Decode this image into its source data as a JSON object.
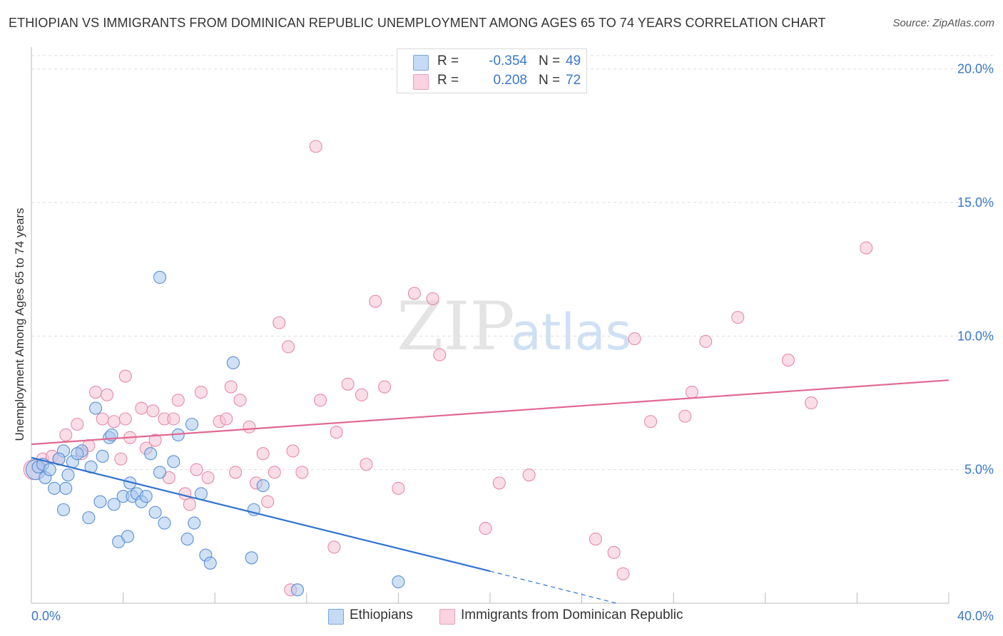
{
  "header": {
    "title": "ETHIOPIAN VS IMMIGRANTS FROM DOMINICAN REPUBLIC UNEMPLOYMENT AMONG AGES 65 TO 74 YEARS CORRELATION CHART",
    "source": "Source: ZipAtlas.com"
  },
  "colors": {
    "blue_fill": "#aac8ee",
    "blue_stroke": "#5b8fd6",
    "blue_line": "#2f72cf",
    "pink_fill": "#f5c2d4",
    "pink_stroke": "#e68aab",
    "pink_line": "#e0698f",
    "grid": "#dddddd",
    "tick_label": "#3a78c9"
  },
  "legend_top": {
    "rows": [
      {
        "r_label": "R =",
        "r_value": "-0.354",
        "n_label": "N =",
        "n_value": "49"
      },
      {
        "r_label": "R =",
        "r_value": "0.208",
        "n_label": "N =",
        "n_value": "72"
      }
    ]
  },
  "legend_bottom": {
    "items": [
      {
        "label": "Ethiopians"
      },
      {
        "label": "Immigrants from Dominican Republic"
      }
    ]
  },
  "watermark": {
    "part1": "ZIP",
    "part2": "atlas"
  },
  "chart_data": {
    "type": "scatter",
    "title": "ETHIOPIAN VS IMMIGRANTS FROM DOMINICAN REPUBLIC UNEMPLOYMENT AMONG AGES 65 TO 74 YEARS CORRELATION CHART",
    "xlabel": "",
    "ylabel": "Unemployment Among Ages 65 to 74 years",
    "xlim": [
      0,
      40
    ],
    "ylim": [
      0,
      20.5
    ],
    "x_tick_labels": [
      "0.0%",
      "40.0%"
    ],
    "y_ticks": [
      5,
      10,
      15,
      20
    ],
    "y_tick_labels": [
      "5.0%",
      "10.0%",
      "15.0%",
      "20.0%"
    ],
    "grid": "horizontal dashed",
    "legend_position": "top-center",
    "series": [
      {
        "name": "Ethiopians",
        "R": -0.354,
        "N": 49,
        "trend": {
          "x": [
            0,
            20
          ],
          "y": [
            5.45,
            1.2
          ],
          "dashed_to": {
            "x": 25.5,
            "y": 0.0
          }
        },
        "points": [
          {
            "x": 0.2,
            "y": 5.0,
            "r": 14
          },
          {
            "x": 0.3,
            "y": 5.1
          },
          {
            "x": 0.5,
            "y": 5.2
          },
          {
            "x": 0.6,
            "y": 4.7
          },
          {
            "x": 1.0,
            "y": 4.3
          },
          {
            "x": 1.4,
            "y": 5.7
          },
          {
            "x": 1.4,
            "y": 3.5
          },
          {
            "x": 1.5,
            "y": 4.3
          },
          {
            "x": 1.6,
            "y": 4.8
          },
          {
            "x": 1.8,
            "y": 5.3
          },
          {
            "x": 2.2,
            "y": 5.7
          },
          {
            "x": 2.5,
            "y": 3.2
          },
          {
            "x": 2.6,
            "y": 5.1
          },
          {
            "x": 2.8,
            "y": 7.3
          },
          {
            "x": 3.0,
            "y": 3.8
          },
          {
            "x": 3.1,
            "y": 5.5
          },
          {
            "x": 3.4,
            "y": 6.2
          },
          {
            "x": 3.5,
            "y": 6.3
          },
          {
            "x": 3.6,
            "y": 3.7
          },
          {
            "x": 3.8,
            "y": 2.3
          },
          {
            "x": 4.0,
            "y": 4.0
          },
          {
            "x": 4.2,
            "y": 2.5
          },
          {
            "x": 4.3,
            "y": 4.5
          },
          {
            "x": 4.4,
            "y": 4.0
          },
          {
            "x": 4.6,
            "y": 4.1
          },
          {
            "x": 4.8,
            "y": 3.8
          },
          {
            "x": 5.0,
            "y": 4.0
          },
          {
            "x": 5.2,
            "y": 5.6
          },
          {
            "x": 5.4,
            "y": 3.4
          },
          {
            "x": 5.6,
            "y": 4.9
          },
          {
            "x": 5.6,
            "y": 12.2
          },
          {
            "x": 5.8,
            "y": 3.0
          },
          {
            "x": 6.2,
            "y": 5.3
          },
          {
            "x": 6.4,
            "y": 6.3
          },
          {
            "x": 6.8,
            "y": 2.4
          },
          {
            "x": 7.0,
            "y": 6.7
          },
          {
            "x": 7.1,
            "y": 3.0
          },
          {
            "x": 7.4,
            "y": 4.1
          },
          {
            "x": 7.6,
            "y": 1.8
          },
          {
            "x": 7.8,
            "y": 1.5
          },
          {
            "x": 8.8,
            "y": 9.0
          },
          {
            "x": 9.6,
            "y": 1.7
          },
          {
            "x": 9.7,
            "y": 3.5
          },
          {
            "x": 10.1,
            "y": 4.4
          },
          {
            "x": 11.6,
            "y": 0.5
          },
          {
            "x": 16.0,
            "y": 0.8
          },
          {
            "x": 2.0,
            "y": 5.6
          },
          {
            "x": 1.2,
            "y": 5.4
          },
          {
            "x": 0.8,
            "y": 5.0
          }
        ]
      },
      {
        "name": "Immigrants from Dominican Republic",
        "R": 0.208,
        "N": 72,
        "trend": {
          "x": [
            0,
            40
          ],
          "y": [
            5.95,
            8.35
          ]
        },
        "points": [
          {
            "x": 0.1,
            "y": 5.0,
            "r": 14
          },
          {
            "x": 0.5,
            "y": 5.4
          },
          {
            "x": 0.9,
            "y": 5.5
          },
          {
            "x": 1.2,
            "y": 5.4
          },
          {
            "x": 1.5,
            "y": 6.3
          },
          {
            "x": 2.0,
            "y": 6.7
          },
          {
            "x": 2.2,
            "y": 5.6
          },
          {
            "x": 2.5,
            "y": 5.9
          },
          {
            "x": 2.8,
            "y": 7.9
          },
          {
            "x": 3.1,
            "y": 6.9
          },
          {
            "x": 3.3,
            "y": 7.8
          },
          {
            "x": 3.6,
            "y": 6.8
          },
          {
            "x": 3.9,
            "y": 5.4
          },
          {
            "x": 4.1,
            "y": 8.5
          },
          {
            "x": 4.3,
            "y": 6.2
          },
          {
            "x": 4.8,
            "y": 7.3
          },
          {
            "x": 5.0,
            "y": 5.8
          },
          {
            "x": 5.3,
            "y": 7.2
          },
          {
            "x": 5.4,
            "y": 6.1
          },
          {
            "x": 5.8,
            "y": 6.9
          },
          {
            "x": 6.0,
            "y": 4.7
          },
          {
            "x": 6.2,
            "y": 6.9
          },
          {
            "x": 6.4,
            "y": 7.6
          },
          {
            "x": 6.7,
            "y": 4.1
          },
          {
            "x": 6.9,
            "y": 3.7
          },
          {
            "x": 7.2,
            "y": 5.0
          },
          {
            "x": 7.4,
            "y": 7.9
          },
          {
            "x": 7.7,
            "y": 4.7
          },
          {
            "x": 8.2,
            "y": 6.8
          },
          {
            "x": 8.5,
            "y": 6.9
          },
          {
            "x": 8.7,
            "y": 8.1
          },
          {
            "x": 8.9,
            "y": 4.9
          },
          {
            "x": 9.1,
            "y": 7.6
          },
          {
            "x": 9.5,
            "y": 6.6
          },
          {
            "x": 9.8,
            "y": 4.5
          },
          {
            "x": 10.1,
            "y": 5.6
          },
          {
            "x": 10.3,
            "y": 3.8
          },
          {
            "x": 10.6,
            "y": 4.9
          },
          {
            "x": 10.8,
            "y": 10.5
          },
          {
            "x": 11.2,
            "y": 9.6
          },
          {
            "x": 11.4,
            "y": 5.7
          },
          {
            "x": 11.8,
            "y": 4.9
          },
          {
            "x": 12.4,
            "y": 17.1
          },
          {
            "x": 12.6,
            "y": 7.6
          },
          {
            "x": 13.2,
            "y": 2.1
          },
          {
            "x": 13.3,
            "y": 6.4
          },
          {
            "x": 13.8,
            "y": 8.2
          },
          {
            "x": 14.4,
            "y": 7.8
          },
          {
            "x": 14.6,
            "y": 5.2
          },
          {
            "x": 15.0,
            "y": 11.3
          },
          {
            "x": 15.4,
            "y": 8.1
          },
          {
            "x": 16.0,
            "y": 4.3
          },
          {
            "x": 16.7,
            "y": 11.6
          },
          {
            "x": 17.5,
            "y": 11.4
          },
          {
            "x": 17.8,
            "y": 9.3
          },
          {
            "x": 19.8,
            "y": 2.8
          },
          {
            "x": 20.4,
            "y": 4.5
          },
          {
            "x": 21.7,
            "y": 4.8
          },
          {
            "x": 24.6,
            "y": 2.4
          },
          {
            "x": 25.4,
            "y": 1.9
          },
          {
            "x": 25.8,
            "y": 1.1
          },
          {
            "x": 26.3,
            "y": 9.9
          },
          {
            "x": 27.0,
            "y": 6.8
          },
          {
            "x": 28.5,
            "y": 7.0
          },
          {
            "x": 28.8,
            "y": 7.9
          },
          {
            "x": 29.4,
            "y": 9.8
          },
          {
            "x": 30.8,
            "y": 10.7
          },
          {
            "x": 33.0,
            "y": 9.1
          },
          {
            "x": 34.0,
            "y": 7.5
          },
          {
            "x": 36.4,
            "y": 13.3
          },
          {
            "x": 11.3,
            "y": 0.5
          },
          {
            "x": 4.1,
            "y": 6.9
          }
        ]
      }
    ]
  }
}
